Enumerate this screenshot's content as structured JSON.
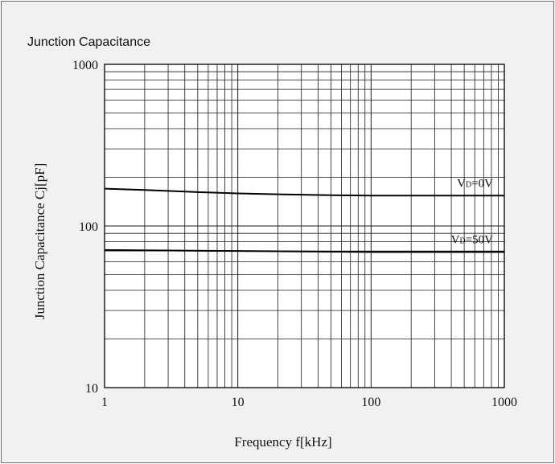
{
  "chart_data": {
    "type": "line",
    "title": "Junction Capacitance",
    "xlabel": "Frequency f[kHz]",
    "ylabel": "Junction Capacitance Cj[pF]",
    "xscale": "log",
    "yscale": "log",
    "xlim": [
      1,
      1000
    ],
    "ylim": [
      10,
      1000
    ],
    "grid": true,
    "x_ticks": [
      "1",
      "10",
      "100",
      "1000"
    ],
    "y_ticks": [
      "10",
      "100",
      "1000"
    ],
    "series": [
      {
        "name": "VD=0V",
        "label_main": "V",
        "label_sub": "D",
        "label_rest": "=0V",
        "x": [
          1,
          2,
          5,
          10,
          20,
          50,
          100,
          200,
          500,
          1000
        ],
        "y": [
          170,
          167,
          162,
          159,
          157,
          155,
          154,
          154,
          154,
          154
        ]
      },
      {
        "name": "VD=50V",
        "label_main": "V",
        "label_sub": "D",
        "label_rest": "=50V",
        "x": [
          1,
          10,
          100,
          1000
        ],
        "y": [
          71,
          70,
          69,
          69
        ]
      }
    ]
  },
  "colors": {
    "background": "#f1f1f1",
    "plot_area": "#ffffff",
    "grid": "#1a1a1a",
    "line": "#000000"
  }
}
